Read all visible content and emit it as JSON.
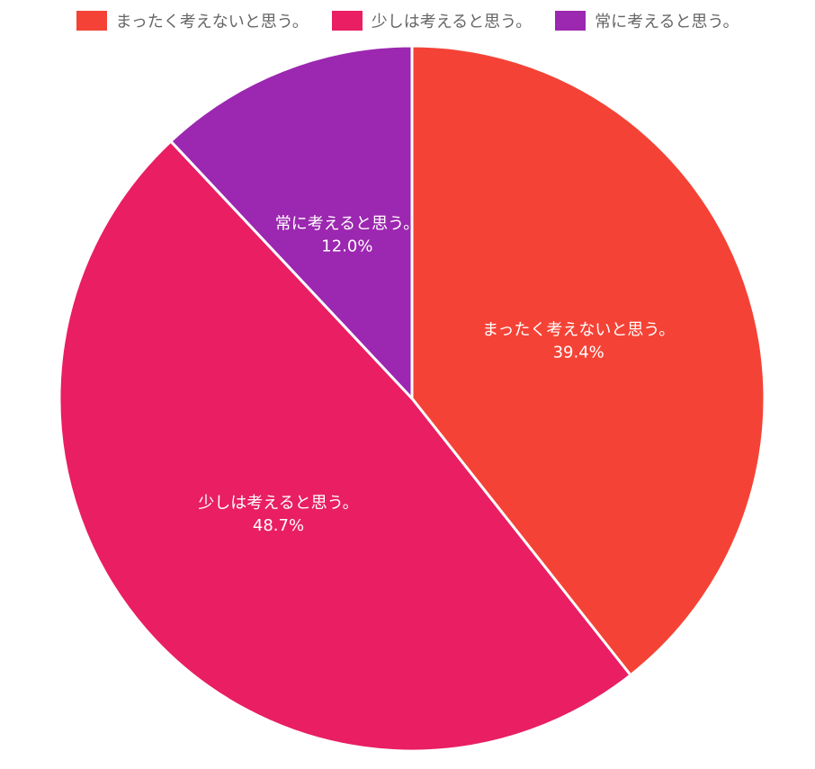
{
  "chart_data": {
    "type": "pie",
    "categories": [
      "まったく考えないと思う。",
      "少しは考えると思う。",
      "常に考えると思う。"
    ],
    "values": [
      39.4,
      48.7,
      12.0
    ],
    "value_labels": [
      "39.4%",
      "48.7%",
      "12.0%"
    ],
    "colors": [
      "#f44336",
      "#e91e63",
      "#9c27b0"
    ],
    "legend_position": "top-center",
    "start_angle": "top (12 o'clock)",
    "direction": "clockwise"
  }
}
